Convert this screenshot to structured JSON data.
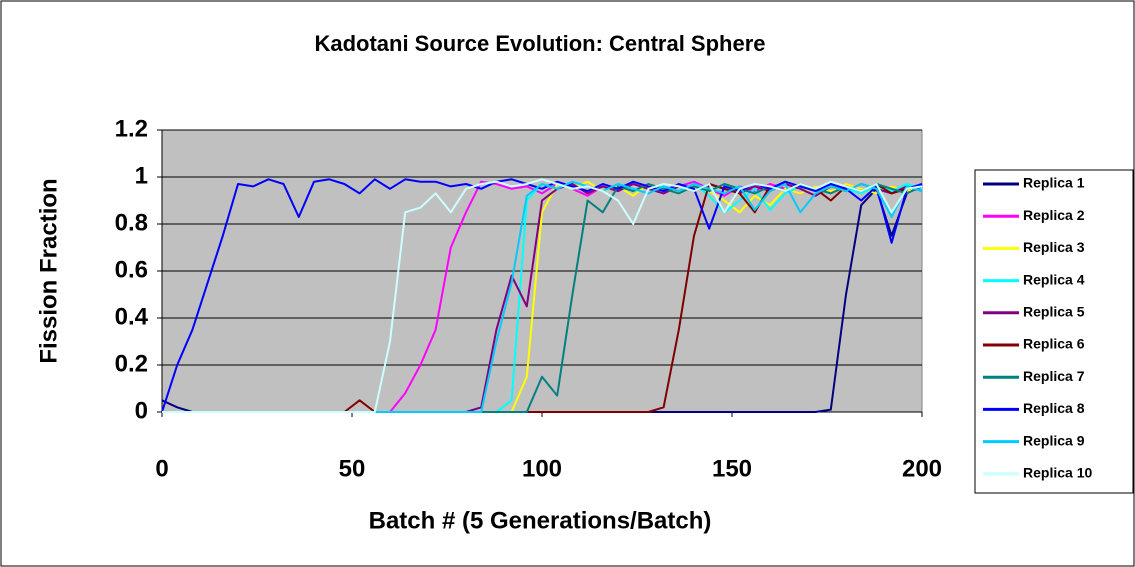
{
  "chart_data": {
    "type": "line",
    "title": "Kadotani Source Evolution: Central Sphere",
    "xlabel": "Batch # (5 Generations/Batch)",
    "ylabel": "Fission Fraction",
    "x": [
      0,
      4,
      8,
      12,
      16,
      20,
      24,
      28,
      32,
      36,
      40,
      44,
      48,
      52,
      56,
      60,
      64,
      68,
      72,
      76,
      80,
      84,
      88,
      92,
      96,
      100,
      104,
      108,
      112,
      116,
      120,
      124,
      128,
      132,
      136,
      140,
      144,
      148,
      152,
      156,
      160,
      164,
      168,
      172,
      176,
      180,
      184,
      188,
      192,
      196,
      200
    ],
    "xlim": [
      0,
      200
    ],
    "xticks": [
      0,
      50,
      100,
      150,
      200
    ],
    "ylim": [
      0,
      1.2
    ],
    "yticks": [
      0,
      0.2,
      0.4,
      0.6,
      0.8,
      1,
      1.2
    ],
    "grid": true,
    "legend": "right",
    "background": "#c0c0c0",
    "series": [
      {
        "name": "Replica 1",
        "color": "#000080",
        "values": [
          0.05,
          0.02,
          0,
          0,
          0,
          0,
          0,
          0,
          0,
          0,
          0,
          0,
          0,
          0,
          0,
          0,
          0,
          0,
          0,
          0,
          0,
          0,
          0,
          0,
          0,
          0,
          0,
          0,
          0,
          0,
          0,
          0,
          0,
          0,
          0,
          0,
          0,
          0,
          0,
          0,
          0,
          0,
          0,
          0,
          0.01,
          0.5,
          0.88,
          0.95,
          0.75,
          0.93,
          0.97
        ]
      },
      {
        "name": "Replica 2",
        "color": "#ff00ff",
        "values": [
          0,
          0,
          0,
          0,
          0,
          0,
          0,
          0,
          0,
          0,
          0,
          0,
          0,
          0,
          0,
          0,
          0.08,
          0.2,
          0.35,
          0.7,
          0.85,
          0.98,
          0.97,
          0.95,
          0.96,
          0.93,
          0.97,
          0.95,
          0.92,
          0.96,
          0.94,
          0.97,
          0.95,
          0.93,
          0.96,
          0.98,
          0.95,
          0.92,
          0.96,
          0.94,
          0.97,
          0.95,
          0.93,
          0.96,
          0.94,
          0.97,
          0.95,
          0.93,
          0.96,
          0.94,
          0.95
        ]
      },
      {
        "name": "Replica 3",
        "color": "#ffff00",
        "values": [
          0,
          0,
          0,
          0,
          0,
          0,
          0,
          0,
          0,
          0,
          0,
          0,
          0,
          0,
          0,
          0,
          0,
          0,
          0,
          0,
          0,
          0,
          0,
          0,
          0.15,
          0.85,
          0.97,
          0.95,
          0.98,
          0.94,
          0.96,
          0.92,
          0.97,
          0.95,
          0.93,
          0.96,
          0.94,
          0.9,
          0.85,
          0.92,
          0.88,
          0.95,
          0.93,
          0.96,
          0.94,
          0.97,
          0.95,
          0.93,
          0.96,
          0.94,
          0.96
        ]
      },
      {
        "name": "Replica 4",
        "color": "#00ffff",
        "values": [
          0,
          0,
          0,
          0,
          0,
          0,
          0,
          0,
          0,
          0,
          0,
          0,
          0,
          0,
          0,
          0,
          0,
          0,
          0,
          0,
          0,
          0,
          0,
          0.05,
          0.9,
          0.97,
          0.95,
          0.98,
          0.96,
          0.94,
          0.97,
          0.95,
          0.93,
          0.96,
          0.94,
          0.97,
          0.92,
          0.85,
          0.9,
          0.95,
          0.86,
          0.93,
          0.96,
          0.94,
          0.97,
          0.95,
          0.93,
          0.96,
          0.94,
          0.97,
          0.95
        ]
      },
      {
        "name": "Replica 5",
        "color": "#800080",
        "values": [
          0,
          0,
          0,
          0,
          0,
          0,
          0,
          0,
          0,
          0,
          0,
          0,
          0,
          0,
          0,
          0,
          0,
          0,
          0,
          0,
          0,
          0.02,
          0.35,
          0.58,
          0.45,
          0.9,
          0.95,
          0.97,
          0.93,
          0.96,
          0.94,
          0.97,
          0.95,
          0.93,
          0.96,
          0.94,
          0.97,
          0.95,
          0.93,
          0.96,
          0.94,
          0.97,
          0.95,
          0.92,
          0.96,
          0.94,
          0.97,
          0.95,
          0.93,
          0.96,
          0.94
        ]
      },
      {
        "name": "Replica 6",
        "color": "#800000",
        "values": [
          0,
          0,
          0,
          0,
          0,
          0,
          0,
          0,
          0,
          0,
          0,
          0,
          0,
          0.05,
          0,
          0,
          0,
          0,
          0,
          0,
          0,
          0,
          0,
          0,
          0,
          0,
          0,
          0,
          0,
          0,
          0,
          0,
          0,
          0.02,
          0.35,
          0.75,
          0.97,
          0.95,
          0.93,
          0.85,
          0.96,
          0.94,
          0.97,
          0.95,
          0.9,
          0.96,
          0.94,
          0.97,
          0.93,
          0.95,
          0.96
        ]
      },
      {
        "name": "Replica 7",
        "color": "#008080",
        "values": [
          0,
          0,
          0,
          0,
          0,
          0,
          0,
          0,
          0,
          0,
          0,
          0,
          0,
          0,
          0,
          0,
          0,
          0,
          0,
          0,
          0,
          0,
          0,
          0,
          0,
          0.15,
          0.07,
          0.5,
          0.9,
          0.85,
          0.96,
          0.94,
          0.97,
          0.95,
          0.93,
          0.96,
          0.94,
          0.97,
          0.95,
          0.93,
          0.96,
          0.94,
          0.97,
          0.95,
          0.93,
          0.96,
          0.94,
          0.97,
          0.95,
          0.93,
          0.96
        ]
      },
      {
        "name": "Replica 8",
        "color": "#0000ff",
        "values": [
          0,
          0.2,
          0.35,
          0.55,
          0.75,
          0.97,
          0.96,
          0.99,
          0.97,
          0.83,
          0.98,
          0.99,
          0.97,
          0.93,
          0.99,
          0.95,
          0.99,
          0.98,
          0.98,
          0.96,
          0.97,
          0.95,
          0.98,
          0.99,
          0.97,
          0.95,
          0.98,
          0.96,
          0.94,
          0.97,
          0.95,
          0.98,
          0.96,
          0.94,
          0.97,
          0.95,
          0.78,
          0.96,
          0.94,
          0.97,
          0.95,
          0.98,
          0.96,
          0.94,
          0.97,
          0.95,
          0.9,
          0.96,
          0.72,
          0.95,
          0.97
        ]
      },
      {
        "name": "Replica 9",
        "color": "#00ccff",
        "values": [
          0,
          0,
          0,
          0,
          0,
          0,
          0,
          0,
          0,
          0,
          0,
          0,
          0,
          0,
          0,
          0,
          0,
          0,
          0,
          0,
          0,
          0,
          0.3,
          0.55,
          0.92,
          0.97,
          0.95,
          0.98,
          0.96,
          0.94,
          0.97,
          0.95,
          0.93,
          0.96,
          0.94,
          0.97,
          0.95,
          0.93,
          0.96,
          0.86,
          0.94,
          0.97,
          0.85,
          0.93,
          0.96,
          0.94,
          0.97,
          0.95,
          0.83,
          0.96,
          0.94
        ]
      },
      {
        "name": "Replica 10",
        "color": "#ccffff",
        "values": [
          0,
          0,
          0,
          0,
          0,
          0,
          0,
          0,
          0,
          0,
          0,
          0,
          0,
          0,
          0,
          0.3,
          0.85,
          0.87,
          0.93,
          0.85,
          0.95,
          0.97,
          0.98,
          0.96,
          0.97,
          0.99,
          0.97,
          0.95,
          0.96,
          0.94,
          0.9,
          0.8,
          0.95,
          0.97,
          0.96,
          0.94,
          0.97,
          0.85,
          0.95,
          0.97,
          0.96,
          0.94,
          0.97,
          0.95,
          0.98,
          0.96,
          0.94,
          0.97,
          0.85,
          0.95,
          0.96
        ]
      }
    ]
  }
}
